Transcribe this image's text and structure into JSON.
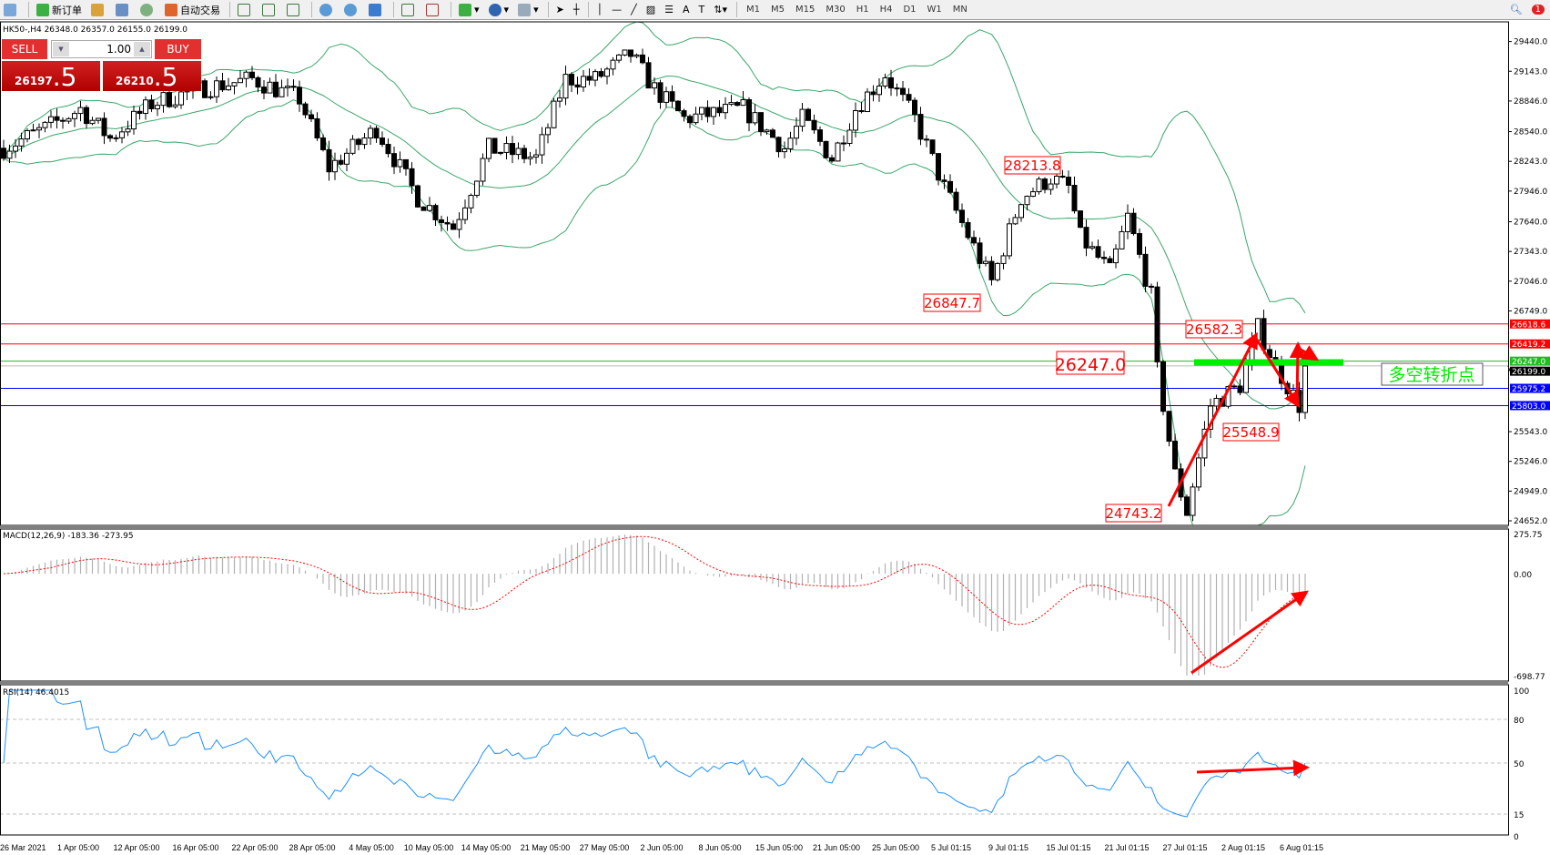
{
  "toolbar": {
    "new_order": "新订单",
    "auto_trading": "自动交易",
    "timeframes": [
      "M1",
      "M5",
      "M15",
      "M30",
      "H1",
      "H4",
      "D1",
      "W1",
      "MN"
    ],
    "notification_count": "1"
  },
  "symbol_info": "HK50-,H4  26348.0 26357.0 26155.0 26199.0",
  "trade_panel": {
    "sell_label": "SELL",
    "buy_label": "BUY",
    "lot": "1.00",
    "sell_price_main": "26197",
    "sell_price_big": ".5",
    "buy_price_main": "26210",
    "buy_price_big": ".5"
  },
  "indicators": {
    "macd_label": "MACD(12,26,9) -183.36 -273.95",
    "rsi_label": "RSI(14) 46.4015"
  },
  "annotations": {
    "labels": [
      "28213.8",
      "26847.7",
      "26582.3",
      "26247.0",
      "25548.9",
      "24743.2"
    ],
    "pivot_text": "多空转折点"
  },
  "colors": {
    "bollinger": "#3aa66a",
    "resistance": "#ff0000",
    "pivot": "#00ee00",
    "support": "#0000ff",
    "macd_hist": "#b0b0b0",
    "macd_signal": "#ff0000",
    "rsi": "#1e90ff",
    "arrow": "#ff0000"
  },
  "chart_data": {
    "type": "candlestick",
    "symbol": "HK50-",
    "timeframe": "H4",
    "price_axis": {
      "ylim": [
        24652.0,
        29440.0
      ],
      "ticks": [
        "29440.0",
        "29143.0",
        "28846.0",
        "28540.0",
        "28243.0",
        "27946.0",
        "27640.0",
        "27343.0",
        "27046.0",
        "26749.0",
        "25543.0",
        "25246.0",
        "24949.0",
        "24652.0"
      ]
    },
    "levels": [
      {
        "price": 26618.6,
        "label": "26618.6",
        "color": "#ff0000"
      },
      {
        "price": 26419.2,
        "label": "26419.2",
        "color": "#ff0000"
      },
      {
        "price": 26247.0,
        "label": "26247.0",
        "color": "#22bb22"
      },
      {
        "price": 26199.0,
        "label": "26199.0",
        "color": "#000000"
      },
      {
        "price": 25975.2,
        "label": "25975.2",
        "color": "#0000ff"
      },
      {
        "price": 25803.0,
        "label": "25803.0",
        "color": "#0000ff"
      }
    ],
    "time_labels": [
      "26 Mar 2021",
      "1 Apr 05:00",
      "12 Apr 05:00",
      "16 Apr 05:00",
      "22 Apr 05:00",
      "28 Apr 05:00",
      "4 May 05:00",
      "10 May 05:00",
      "14 May 05:00",
      "21 May 05:00",
      "27 May 05:00",
      "2 Jun 05:00",
      "8 Jun 05:00",
      "15 Jun 05:00",
      "21 Jun 05:00",
      "25 Jun 05:00",
      "5 Jul 01:15",
      "9 Jul 01:15",
      "15 Jul 01:15",
      "21 Jul 01:15",
      "27 Jul 01:15",
      "2 Aug 01:15",
      "6 Aug 01:15"
    ],
    "price_path": [
      [
        0,
        28374
      ],
      [
        7,
        28571
      ],
      [
        13,
        28769
      ],
      [
        18,
        28472
      ],
      [
        25,
        28818
      ],
      [
        33,
        28966
      ],
      [
        42,
        29065
      ],
      [
        50,
        28867
      ],
      [
        55,
        28176
      ],
      [
        63,
        28571
      ],
      [
        70,
        27880
      ],
      [
        76,
        27584
      ],
      [
        82,
        28374
      ],
      [
        90,
        28275
      ],
      [
        95,
        29065
      ],
      [
        100,
        29065
      ],
      [
        106,
        29312
      ],
      [
        110,
        28966
      ],
      [
        115,
        28670
      ],
      [
        125,
        28769
      ],
      [
        132,
        28374
      ],
      [
        135,
        28670
      ],
      [
        140,
        28275
      ],
      [
        144,
        28769
      ],
      [
        149,
        29114
      ],
      [
        154,
        28670
      ],
      [
        159,
        27979
      ],
      [
        164,
        27387
      ],
      [
        167,
        27040
      ],
      [
        172,
        27880
      ],
      [
        177,
        28077
      ],
      [
        180,
        27979
      ],
      [
        182,
        27485
      ],
      [
        187,
        27140
      ],
      [
        190,
        27683
      ],
      [
        194,
        26893
      ],
      [
        195,
        26152
      ],
      [
        198,
        25115
      ],
      [
        200,
        24743
      ],
      [
        201,
        25016
      ],
      [
        204,
        25806
      ],
      [
        209,
        26005
      ],
      [
        212,
        26582
      ],
      [
        215,
        26202
      ],
      [
        219,
        25803
      ],
      [
        220,
        26199
      ]
    ],
    "bollinger": {
      "period": 20,
      "deviation": 2
    },
    "macd": {
      "fast": 12,
      "slow": 26,
      "signal": 9,
      "main": -183.36,
      "signal_value": -273.95,
      "ylim": [
        -698.77,
        275.75
      ],
      "ticks": [
        "275.75",
        "0.00",
        "-698.77"
      ]
    },
    "rsi": {
      "period": 14,
      "value": 46.4015,
      "ylim": [
        0,
        100
      ],
      "levels": [
        80,
        50,
        15
      ],
      "ticks": [
        "100",
        "80",
        "50",
        "15",
        "0"
      ]
    }
  }
}
